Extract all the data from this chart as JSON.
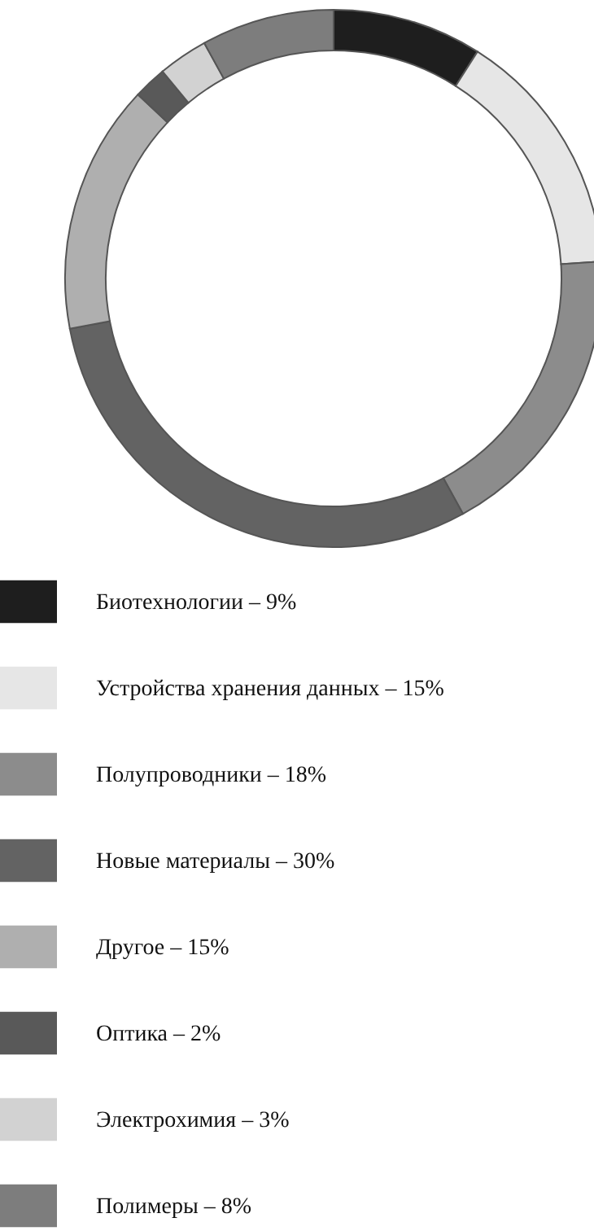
{
  "chart_data": {
    "type": "donut",
    "categories": [
      "Биотехнологии – 9%",
      "Устройства хранения данных – 15%",
      "Полупроводники – 18%",
      "Новые материалы – 30%",
      "Другое – 15%",
      "Оптика – 2%",
      "Электрохимия – 3%",
      "Полимеры – 8%"
    ],
    "values": [
      9,
      15,
      18,
      30,
      15,
      2,
      3,
      8
    ],
    "colors": [
      "#1e1e1e",
      "#e6e6e6",
      "#8c8c8c",
      "#636363",
      "#afafaf",
      "#595959",
      "#d2d2d2",
      "#7d7d7d"
    ],
    "legend": "bottom"
  }
}
